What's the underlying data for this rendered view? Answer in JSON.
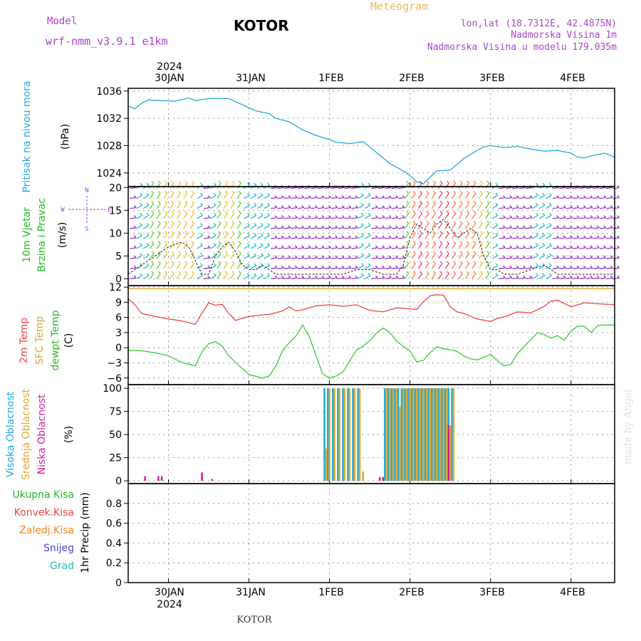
{
  "header": {
    "model_label": "Model",
    "model_name": "wrf-nmm_v3.9.1 e1km",
    "title": "KOTOR",
    "product": "Meteogram",
    "lonlat": "lon,lat (18.7312E, 42.4875N)",
    "elevation": "Nadmorska Visina 1m",
    "model_elevation": "Nadmorska Visina u modelu 179.035m",
    "footer": "KOTOR",
    "watermark": "made by Angel"
  },
  "colors": {
    "pressure": "#22aadd",
    "t2m": "#ee4444",
    "sfc": "#ddaa33",
    "dewpt": "#33cc33",
    "high_cloud": "#22aadd",
    "mid_cloud": "#ddaa33",
    "low_cloud": "#cc2299",
    "axes": "#000000",
    "grid": "#999999",
    "label_cyan": "#22aadd",
    "label_green": "#22bb22",
    "label_purple": "#aa44cc",
    "label_red": "#ee4444",
    "label_orange": "#ee8822",
    "label_blue": "#4444dd",
    "label_teal": "#22bbbb",
    "header_gold": "#e8b860",
    "header_purple": "#aa44cc"
  },
  "chart_data": [
    {
      "type": "line",
      "title": "",
      "ylabel": "(hPa)",
      "side_label": [
        "Pritisak na nivou mora"
      ],
      "xlim": [
        0,
        145
      ],
      "ylim": [
        1022,
        1036.4
      ],
      "yticks": [
        1024,
        1028,
        1032,
        1036
      ],
      "x_ticks": [
        12,
        36,
        60,
        84,
        108,
        132
      ],
      "x_tick_labels": [
        "30JAN",
        "31JAN",
        "1FEB",
        "2FEB",
        "3FEB",
        "4FEB"
      ],
      "year_label": "2024",
      "series": [
        {
          "color_key": "pressure",
          "x": [
            0,
            2,
            4,
            6,
            10,
            14,
            18,
            20,
            24,
            30,
            34,
            38,
            42,
            44,
            48,
            52,
            56,
            60,
            62,
            66,
            70,
            74,
            78,
            82,
            84,
            86,
            88,
            90,
            92,
            96,
            100,
            104,
            106,
            108,
            112,
            116,
            120,
            124,
            128,
            132,
            134,
            136,
            138,
            142,
            145
          ],
          "y": [
            1033.8,
            1033.4,
            1034.2,
            1034.7,
            1034.6,
            1034.5,
            1035,
            1034.6,
            1034.9,
            1034.9,
            1034,
            1033.1,
            1032.7,
            1032,
            1031.5,
            1030.3,
            1029.5,
            1028.9,
            1028.5,
            1028.3,
            1028.6,
            1027,
            1025.4,
            1024.3,
            1023.6,
            1022.7,
            1022.4,
            1023.4,
            1024.3,
            1024.4,
            1026.1,
            1027.3,
            1027.8,
            1028,
            1027.7,
            1027.9,
            1027.5,
            1027.2,
            1027.3,
            1026.9,
            1026.3,
            1026.2,
            1026.5,
            1026.9,
            1026.3
          ]
        }
      ]
    },
    {
      "type": "wind_barbs",
      "title": "",
      "ylabel": "(m/s)",
      "side_label": [
        "10m Vjetar",
        "Brzina i Pravac"
      ],
      "direction_key": [
        "N",
        "W",
        "E",
        "S"
      ],
      "xlim": [
        0,
        145
      ],
      "ylim": [
        -1.5,
        20.2
      ],
      "yticks": [
        0,
        5,
        10,
        15,
        20
      ],
      "speed_series": {
        "x": [
          0,
          4,
          8,
          12,
          16,
          18,
          20,
          22,
          24,
          26,
          28,
          30,
          32,
          34,
          36,
          38,
          40,
          42,
          44,
          48,
          52,
          56,
          60,
          64,
          68,
          72,
          76,
          80,
          82,
          84,
          86,
          88,
          90,
          92,
          94,
          96,
          98,
          100,
          102,
          104,
          106,
          108,
          110,
          112,
          116,
          120,
          124,
          128,
          132,
          136,
          140,
          145
        ],
        "y": [
          1,
          3,
          5,
          7,
          8,
          7,
          4,
          1,
          1,
          5,
          7,
          8,
          6,
          3,
          2,
          2,
          3,
          2,
          1,
          1,
          1,
          1,
          1,
          1,
          2,
          2,
          1,
          1,
          3,
          9,
          12,
          11,
          10,
          12,
          13,
          11,
          9,
          10,
          11,
          10,
          5,
          2,
          2,
          1,
          1,
          2,
          3,
          1,
          1,
          1,
          1,
          1
        ]
      }
    },
    {
      "type": "line",
      "title": "",
      "ylabel": "(C)",
      "side_label": [
        "2m Temp",
        "SFC Temp",
        "dewpt Temp"
      ],
      "xlim": [
        0,
        145
      ],
      "ylim": [
        -7.3,
        12.3
      ],
      "yticks": [
        -6,
        -3,
        0,
        3,
        6,
        9,
        12
      ],
      "series": [
        {
          "color_key": "sfc",
          "x": [
            0,
            145
          ],
          "y": [
            11.7,
            11.7
          ]
        },
        {
          "color_key": "t2m",
          "x": [
            0,
            2,
            4,
            8,
            12,
            16,
            20,
            22,
            24,
            26,
            28,
            30,
            32,
            36,
            40,
            42,
            44,
            46,
            48,
            50,
            52,
            56,
            60,
            64,
            68,
            72,
            76,
            80,
            82,
            84,
            86,
            88,
            90,
            92,
            94,
            96,
            98,
            100,
            104,
            108,
            110,
            112,
            116,
            120,
            124,
            126,
            128,
            132,
            136,
            140,
            145
          ],
          "y": [
            9.7,
            8.5,
            6.8,
            6.2,
            5.7,
            5.3,
            4.6,
            6.8,
            8.9,
            8.4,
            8.6,
            6.8,
            5.4,
            6.2,
            6.5,
            6.6,
            6.9,
            7.3,
            8.1,
            7.3,
            7.5,
            8.3,
            8.5,
            8.2,
            8.5,
            7.4,
            7.1,
            7.9,
            7.8,
            7.7,
            7.6,
            9.1,
            10.3,
            10.5,
            10.4,
            8.1,
            7.1,
            6.8,
            5.7,
            5.2,
            5.8,
            6.1,
            7.1,
            6.9,
            8.2,
            9.2,
            9.4,
            8.1,
            8.9,
            8.7,
            8.5
          ]
        },
        {
          "color_key": "dewpt",
          "x": [
            0,
            4,
            8,
            12,
            16,
            20,
            22,
            24,
            26,
            28,
            30,
            32,
            36,
            40,
            42,
            44,
            46,
            48,
            50,
            52,
            54,
            56,
            58,
            60,
            62,
            64,
            66,
            68,
            70,
            72,
            74,
            76,
            78,
            80,
            82,
            84,
            86,
            88,
            90,
            92,
            94,
            96,
            98,
            100,
            102,
            104,
            106,
            108,
            110,
            112,
            114,
            116,
            118,
            120,
            122,
            124,
            126,
            128,
            130,
            132,
            134,
            136,
            138,
            140,
            142,
            145
          ],
          "y": [
            -0.5,
            -0.6,
            -1,
            -1.6,
            -2.9,
            -3.6,
            -0.8,
            0.8,
            1.2,
            0.3,
            -1.6,
            -2.9,
            -5.3,
            -6,
            -5.6,
            -3.6,
            -0.6,
            1,
            2.3,
            4.5,
            2.2,
            -1.6,
            -5.2,
            -6,
            -5.6,
            -4.8,
            -2.6,
            -0.5,
            0.3,
            1.4,
            2.9,
            3.9,
            3,
            1.3,
            0.3,
            -0.7,
            -2.8,
            -2.5,
            -1,
            0.2,
            -0.2,
            -0.4,
            -0.7,
            -1.6,
            -2.2,
            -2.4,
            -1.9,
            -1.3,
            -2.5,
            -3.6,
            -3.3,
            -1.2,
            0.2,
            1.6,
            3,
            2.6,
            1.9,
            2.4,
            1.5,
            3.3,
            4.3,
            4.2,
            3,
            4.4,
            4.5,
            4.5
          ]
        }
      ]
    },
    {
      "type": "bar",
      "title": "",
      "ylabel": "(%)",
      "side_label": [
        "Visoka Oblacnost",
        "Srednja Oblacnost",
        "Niska Oblacnost"
      ],
      "xlim": [
        0,
        145
      ],
      "ylim": [
        -3,
        104
      ],
      "yticks": [
        0,
        25,
        50,
        75,
        100
      ],
      "series": [
        {
          "name": "Visoka Oblacnost",
          "color_key": "high_cloud",
          "x": [
            58.5,
            59.5,
            61,
            62.5,
            64,
            65.5,
            67,
            68.5,
            76.5,
            77.5,
            78.5,
            79.5,
            80.5,
            81.5,
            82.5,
            83.5,
            84.5,
            85.5,
            86.5,
            87.5,
            88.5,
            89.5,
            90.5,
            91.5,
            92.5,
            93.5,
            94.5,
            95.5,
            96.5
          ],
          "values": [
            100,
            100,
            100,
            100,
            100,
            100,
            100,
            100,
            100,
            100,
            100,
            100,
            100,
            100,
            100,
            100,
            100,
            100,
            100,
            100,
            100,
            100,
            100,
            100,
            100,
            100,
            100,
            100,
            100
          ]
        },
        {
          "name": "Srednja Oblacnost",
          "color_key": "mid_cloud",
          "x": [
            59,
            60,
            61.5,
            63,
            64.5,
            66,
            67.5,
            69,
            70,
            77,
            78,
            79,
            80,
            81,
            82,
            83,
            84,
            85,
            86,
            87,
            88,
            89,
            90,
            91,
            92,
            93,
            94,
            95,
            96,
            97
          ],
          "values": [
            35,
            100,
            100,
            100,
            100,
            100,
            100,
            100,
            10,
            100,
            100,
            100,
            100,
            80,
            100,
            100,
            100,
            100,
            100,
            100,
            100,
            100,
            100,
            100,
            100,
            100,
            100,
            100,
            60,
            100
          ]
        },
        {
          "name": "Niska Oblacnost",
          "color_key": "low_cloud",
          "x": [
            5,
            9,
            10,
            22,
            25,
            75,
            76,
            95.5
          ],
          "values": [
            5,
            5,
            5,
            9,
            2,
            4,
            4,
            60
          ]
        }
      ]
    },
    {
      "type": "bar",
      "title": "",
      "ylabel": "1hr Precip (mm)",
      "legend": [
        "Ukupna Kisa",
        "Konvek.Kisa",
        "Zaledj.Kisa",
        "Snijeg",
        "Grad"
      ],
      "xlim": [
        0,
        145
      ],
      "ylim": [
        0,
        1.0
      ],
      "yticks": [
        0,
        0.2,
        0.4,
        0.6,
        0.8
      ],
      "ytick_labels": [
        "0",
        "0.2",
        "0.4",
        "0.6",
        "0.8"
      ],
      "series": [
        {
          "name": "Ukupna Kisa",
          "values": []
        }
      ]
    }
  ]
}
